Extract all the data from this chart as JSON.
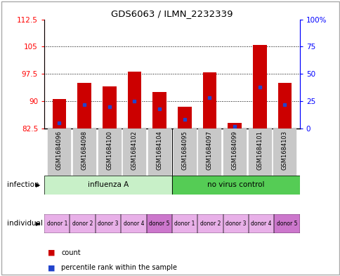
{
  "title": "GDS6063 / ILMN_2232339",
  "samples": [
    "GSM1684096",
    "GSM1684098",
    "GSM1684100",
    "GSM1684102",
    "GSM1684104",
    "GSM1684095",
    "GSM1684097",
    "GSM1684099",
    "GSM1684101",
    "GSM1684103"
  ],
  "count_values": [
    90.5,
    95.0,
    94.0,
    98.2,
    92.5,
    88.5,
    98.0,
    84.0,
    105.5,
    95.0
  ],
  "percentile_values": [
    5,
    22,
    20,
    25,
    18,
    8,
    28,
    2,
    38,
    22
  ],
  "ylim_left": [
    82.5,
    112.5
  ],
  "ylim_right": [
    0,
    100
  ],
  "yticks_left": [
    82.5,
    90,
    97.5,
    105,
    112.5
  ],
  "yticks_right": [
    0,
    25,
    50,
    75,
    100
  ],
  "ytick_labels_right": [
    "0",
    "25",
    "50",
    "75",
    "100%"
  ],
  "infection_groups": [
    {
      "label": "influenza A",
      "start": 0,
      "end": 5,
      "color": "#c8f0c8"
    },
    {
      "label": "no virus control",
      "start": 5,
      "end": 10,
      "color": "#55cc55"
    }
  ],
  "individual_labels": [
    "donor 1",
    "donor 2",
    "donor 3",
    "donor 4",
    "donor 5",
    "donor 1",
    "donor 2",
    "donor 3",
    "donor 4",
    "donor 5"
  ],
  "individual_colors": [
    "#e8b0e8",
    "#e8b0e8",
    "#e8b0e8",
    "#e8b0e8",
    "#cc77cc",
    "#e8b0e8",
    "#e8b0e8",
    "#e8b0e8",
    "#e8b0e8",
    "#cc77cc"
  ],
  "bar_color": "#cc0000",
  "blue_color": "#2244cc",
  "bar_width": 0.55,
  "baseline": 82.5,
  "sample_box_color": "#c8c8c8",
  "legend_items": [
    {
      "label": "count",
      "color": "#cc0000"
    },
    {
      "label": "percentile rank within the sample",
      "color": "#2244cc"
    }
  ]
}
